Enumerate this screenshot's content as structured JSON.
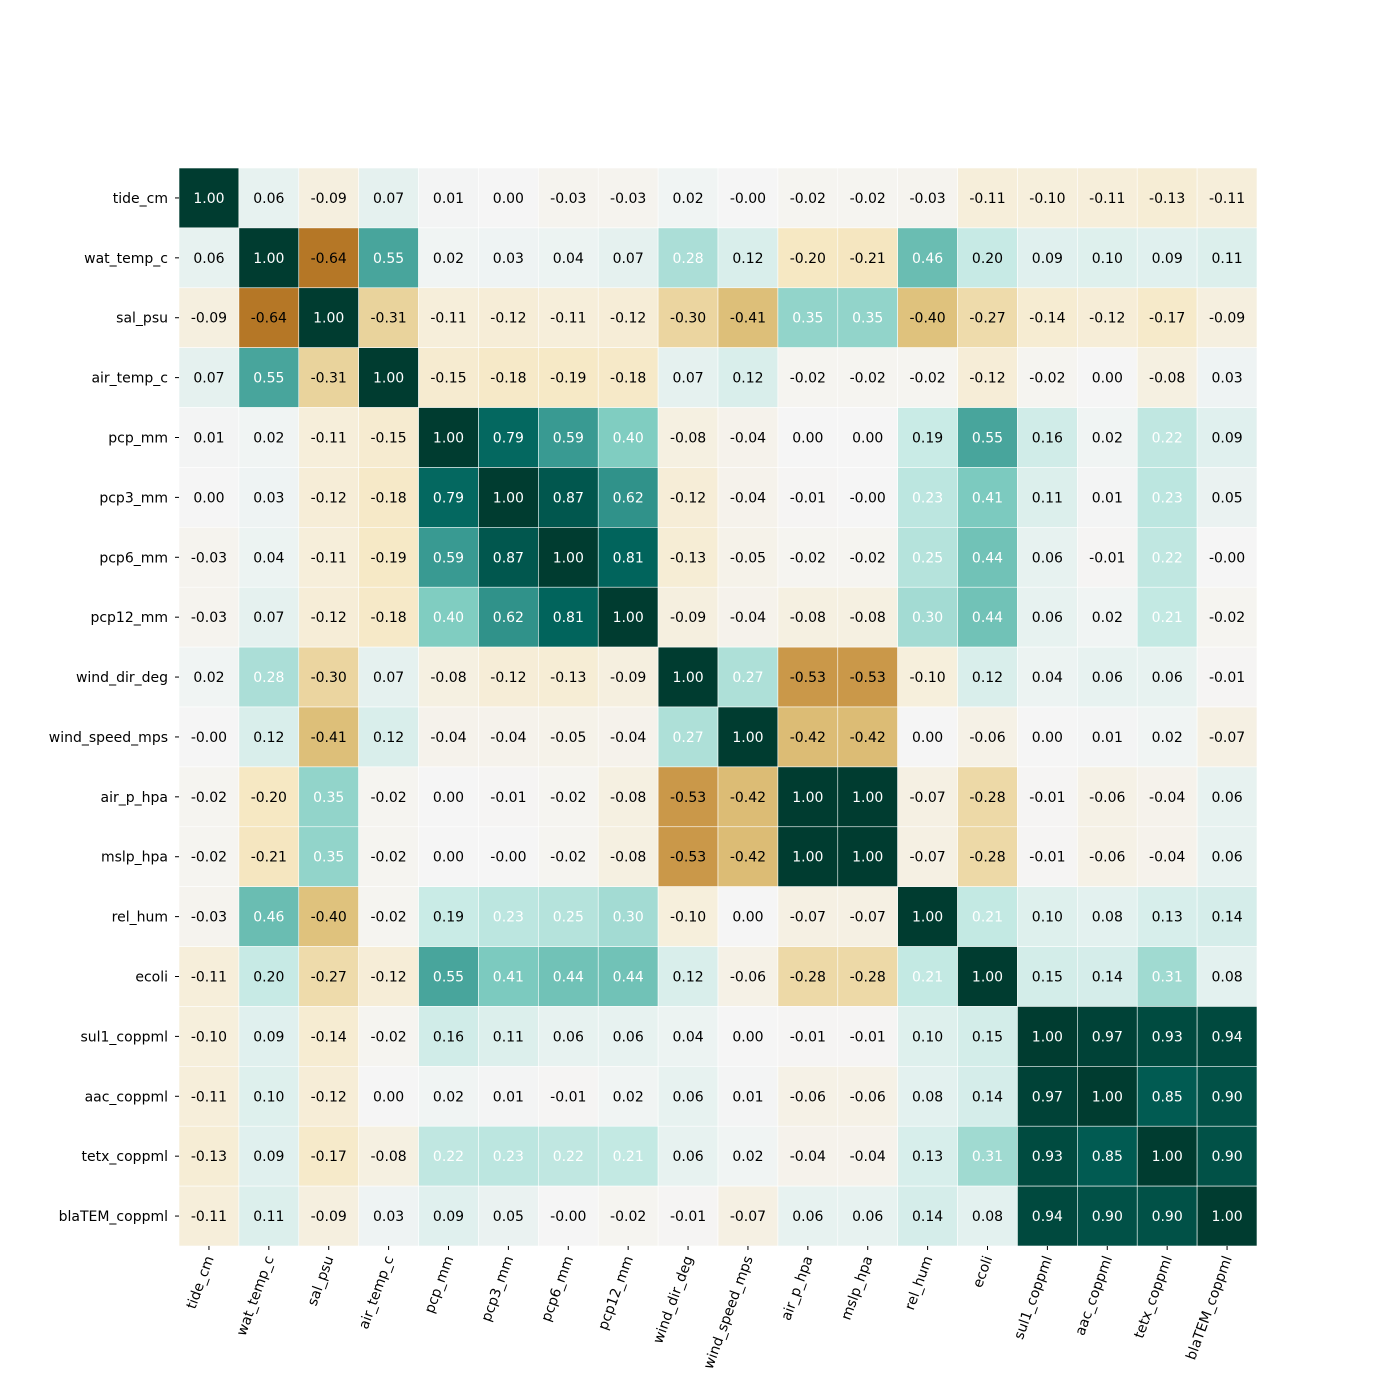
{
  "chart_data": {
    "type": "heatmap",
    "title": "",
    "xlabel": "",
    "ylabel": "",
    "colormap": "BrBG",
    "vmin": -1,
    "vmax": 1,
    "cell_border_color": "#ffffff",
    "labels": [
      "tide_cm",
      "wat_temp_c",
      "sal_psu",
      "air_temp_c",
      "pcp_mm",
      "pcp3_mm",
      "pcp6_mm",
      "pcp12_mm",
      "wind_dir_deg",
      "wind_speed_mps",
      "air_p_hpa",
      "mslp_hpa",
      "rel_hum",
      "ecoli",
      "sul1_coppml",
      "aac_coppml",
      "tetx_coppml",
      "blaTEM_coppml"
    ],
    "value_labels": [
      [
        "1.00",
        "0.06",
        "-0.09",
        "0.07",
        "0.01",
        "0.00",
        "-0.03",
        "-0.03",
        "0.02",
        "-0.00",
        "-0.02",
        "-0.02",
        "-0.03",
        "-0.11",
        "-0.10",
        "-0.11",
        "-0.13",
        "-0.11"
      ],
      [
        "0.06",
        "1.00",
        "-0.64",
        "0.55",
        "0.02",
        "0.03",
        "0.04",
        "0.07",
        "0.28",
        "0.12",
        "-0.20",
        "-0.21",
        "0.46",
        "0.20",
        "0.09",
        "0.10",
        "0.09",
        "0.11"
      ],
      [
        "-0.09",
        "-0.64",
        "1.00",
        "-0.31",
        "-0.11",
        "-0.12",
        "-0.11",
        "-0.12",
        "-0.30",
        "-0.41",
        "0.35",
        "0.35",
        "-0.40",
        "-0.27",
        "-0.14",
        "-0.12",
        "-0.17",
        "-0.09"
      ],
      [
        "0.07",
        "0.55",
        "-0.31",
        "1.00",
        "-0.15",
        "-0.18",
        "-0.19",
        "-0.18",
        "0.07",
        "0.12",
        "-0.02",
        "-0.02",
        "-0.02",
        "-0.12",
        "-0.02",
        "0.00",
        "-0.08",
        "0.03"
      ],
      [
        "0.01",
        "0.02",
        "-0.11",
        "-0.15",
        "1.00",
        "0.79",
        "0.59",
        "0.40",
        "-0.08",
        "-0.04",
        "0.00",
        "0.00",
        "0.19",
        "0.55",
        "0.16",
        "0.02",
        "0.22",
        "0.09"
      ],
      [
        "0.00",
        "0.03",
        "-0.12",
        "-0.18",
        "0.79",
        "1.00",
        "0.87",
        "0.62",
        "-0.12",
        "-0.04",
        "-0.01",
        "-0.00",
        "0.23",
        "0.41",
        "0.11",
        "0.01",
        "0.23",
        "0.05"
      ],
      [
        "-0.03",
        "0.04",
        "-0.11",
        "-0.19",
        "0.59",
        "0.87",
        "1.00",
        "0.81",
        "-0.13",
        "-0.05",
        "-0.02",
        "-0.02",
        "0.25",
        "0.44",
        "0.06",
        "-0.01",
        "0.22",
        "-0.00"
      ],
      [
        "-0.03",
        "0.07",
        "-0.12",
        "-0.18",
        "0.40",
        "0.62",
        "0.81",
        "1.00",
        "-0.09",
        "-0.04",
        "-0.08",
        "-0.08",
        "0.30",
        "0.44",
        "0.06",
        "0.02",
        "0.21",
        "-0.02"
      ],
      [
        "0.02",
        "0.28",
        "-0.30",
        "0.07",
        "-0.08",
        "-0.12",
        "-0.13",
        "-0.09",
        "1.00",
        "0.27",
        "-0.53",
        "-0.53",
        "-0.10",
        "0.12",
        "0.04",
        "0.06",
        "0.06",
        "-0.01"
      ],
      [
        "-0.00",
        "0.12",
        "-0.41",
        "0.12",
        "-0.04",
        "-0.04",
        "-0.05",
        "-0.04",
        "0.27",
        "1.00",
        "-0.42",
        "-0.42",
        "0.00",
        "-0.06",
        "0.00",
        "0.01",
        "0.02",
        "-0.07"
      ],
      [
        "-0.02",
        "-0.20",
        "0.35",
        "-0.02",
        "0.00",
        "-0.01",
        "-0.02",
        "-0.08",
        "-0.53",
        "-0.42",
        "1.00",
        "1.00",
        "-0.07",
        "-0.28",
        "-0.01",
        "-0.06",
        "-0.04",
        "0.06"
      ],
      [
        "-0.02",
        "-0.21",
        "0.35",
        "-0.02",
        "0.00",
        "-0.00",
        "-0.02",
        "-0.08",
        "-0.53",
        "-0.42",
        "1.00",
        "1.00",
        "-0.07",
        "-0.28",
        "-0.01",
        "-0.06",
        "-0.04",
        "0.06"
      ],
      [
        "-0.03",
        "0.46",
        "-0.40",
        "-0.02",
        "0.19",
        "0.23",
        "0.25",
        "0.30",
        "-0.10",
        "0.00",
        "-0.07",
        "-0.07",
        "1.00",
        "0.21",
        "0.10",
        "0.08",
        "0.13",
        "0.14"
      ],
      [
        "-0.11",
        "0.20",
        "-0.27",
        "-0.12",
        "0.55",
        "0.41",
        "0.44",
        "0.44",
        "0.12",
        "-0.06",
        "-0.28",
        "-0.28",
        "0.21",
        "1.00",
        "0.15",
        "0.14",
        "0.31",
        "0.08"
      ],
      [
        "-0.10",
        "0.09",
        "-0.14",
        "-0.02",
        "0.16",
        "0.11",
        "0.06",
        "0.06",
        "0.04",
        "0.00",
        "-0.01",
        "-0.01",
        "0.10",
        "0.15",
        "1.00",
        "0.97",
        "0.93",
        "0.94"
      ],
      [
        "-0.11",
        "0.10",
        "-0.12",
        "0.00",
        "0.02",
        "0.01",
        "-0.01",
        "0.02",
        "0.06",
        "0.01",
        "-0.06",
        "-0.06",
        "0.08",
        "0.14",
        "0.97",
        "1.00",
        "0.85",
        "0.90"
      ],
      [
        "-0.13",
        "0.09",
        "-0.17",
        "-0.08",
        "0.22",
        "0.23",
        "0.22",
        "0.21",
        "0.06",
        "0.02",
        "-0.04",
        "-0.04",
        "0.13",
        "0.31",
        "0.93",
        "0.85",
        "1.00",
        "0.90"
      ],
      [
        "-0.11",
        "0.11",
        "-0.09",
        "0.03",
        "0.09",
        "0.05",
        "-0.00",
        "-0.02",
        "-0.01",
        "-0.07",
        "0.06",
        "0.06",
        "0.14",
        "0.08",
        "0.94",
        "0.90",
        "0.90",
        "1.00"
      ]
    ]
  }
}
